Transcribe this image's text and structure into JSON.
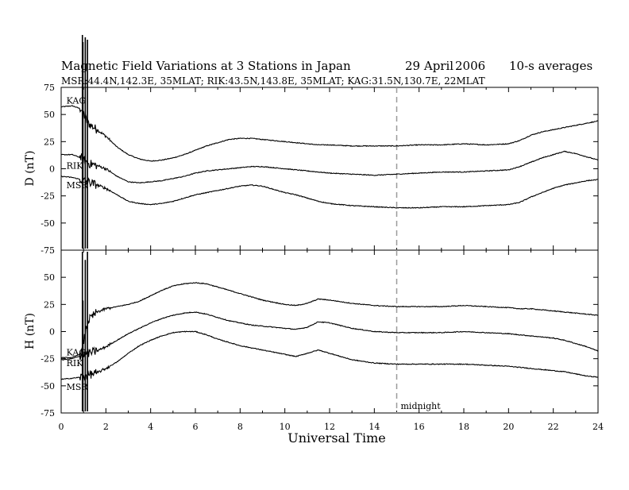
{
  "chart_data": {
    "type": "line",
    "title_left": "Magnetic Field Variations at 3 Stations in Japan",
    "title_date": "29 April",
    "title_year": "2006",
    "title_avg": "10-s averages",
    "subtitle": "MSR:44.4N,142.3E, 35MLAT;  RIK:43.5N,143.8E, 35MLAT;  KAG:31.5N,130.7E, 22MLAT",
    "xlabel": "Universal Time",
    "xlim": [
      0,
      24
    ],
    "x_ticks": [
      "0",
      "2",
      "4",
      "6",
      "8",
      "10",
      "12",
      "14",
      "16",
      "18",
      "20",
      "22",
      "24"
    ],
    "grid": false,
    "midnight_marker": {
      "x": 15,
      "label": "midnight",
      "style": "dashed",
      "color": "#9a9a9a"
    },
    "panels": [
      {
        "ylabel": "D (nT)",
        "ylim": [
          -75,
          75
        ],
        "y_ticks": [
          "75",
          "50",
          "25",
          "0",
          "-25",
          "-50",
          "-75"
        ],
        "station_labels": [
          {
            "text": "KAG",
            "x": 0.2,
            "y": 63
          },
          {
            "text": "RIK",
            "x": 0.2,
            "y": 3
          },
          {
            "text": "MSR",
            "x": 0.2,
            "y": -15
          }
        ],
        "series": [
          {
            "name": "KAG",
            "x": [
              0,
              0.5,
              0.9,
              1.2,
              1.6,
              2.0,
              2.5,
              3.0,
              3.5,
              4.0,
              4.5,
              5.0,
              5.5,
              6.0,
              6.5,
              7.0,
              7.5,
              8.0,
              8.5,
              9.0,
              9.5,
              10.0,
              10.5,
              11.0,
              11.5,
              12.0,
              13.0,
              14.0,
              15.0,
              16.0,
              17.0,
              18.0,
              19.0,
              20.0,
              20.5,
              21.0,
              21.5,
              22.0,
              22.5,
              23.0,
              23.5,
              24.0
            ],
            "y": [
              57,
              58,
              55,
              42,
              36,
              30,
              20,
              13,
              9,
              7,
              8,
              10,
              13,
              17,
              21,
              24,
              27,
              28,
              28,
              27,
              26,
              25,
              24,
              23,
              22,
              22,
              21,
              21,
              21,
              22,
              22,
              23,
              22,
              23,
              26,
              31,
              34,
              36,
              38,
              40,
              42,
              44
            ]
          },
          {
            "name": "RIK",
            "x": [
              0,
              0.5,
              0.9,
              1.2,
              1.6,
              2.0,
              2.5,
              3.0,
              3.5,
              4.0,
              4.5,
              5.0,
              5.5,
              6.0,
              6.5,
              7.0,
              7.5,
              8.0,
              8.5,
              9.0,
              9.5,
              10.0,
              10.5,
              11.0,
              11.5,
              12.0,
              13.0,
              14.0,
              15.0,
              16.0,
              17.0,
              18.0,
              19.0,
              20.0,
              20.5,
              21.0,
              21.5,
              22.0,
              22.5,
              23.0,
              23.5,
              24.0
            ],
            "y": [
              13,
              13,
              10,
              5,
              3,
              0,
              -7,
              -12,
              -13,
              -12,
              -11,
              -9,
              -7,
              -4,
              -2,
              -1,
              0,
              1,
              2,
              2,
              1,
              0,
              -1,
              -2,
              -3,
              -4,
              -5,
              -6,
              -5,
              -4,
              -3,
              -3,
              -2,
              -1,
              2,
              6,
              10,
              13,
              16,
              14,
              11,
              8
            ]
          },
          {
            "name": "MSR",
            "x": [
              0,
              0.5,
              0.9,
              1.2,
              1.6,
              2.0,
              2.5,
              3.0,
              3.5,
              4.0,
              4.5,
              5.0,
              5.5,
              6.0,
              6.5,
              7.0,
              7.5,
              8.0,
              8.5,
              9.0,
              9.5,
              10.0,
              10.5,
              11.0,
              11.5,
              12.0,
              13.0,
              14.0,
              15.0,
              16.0,
              17.0,
              18.0,
              19.0,
              20.0,
              20.5,
              21.0,
              21.5,
              22.0,
              22.5,
              23.0,
              23.5,
              24.0
            ],
            "y": [
              -7,
              -8,
              -10,
              -12,
              -15,
              -18,
              -24,
              -30,
              -32,
              -33,
              -32,
              -30,
              -27,
              -24,
              -22,
              -20,
              -18,
              -16,
              -15,
              -16,
              -19,
              -22,
              -24,
              -27,
              -30,
              -32,
              -34,
              -35,
              -36,
              -36,
              -35,
              -35,
              -34,
              -33,
              -31,
              -26,
              -22,
              -18,
              -15,
              -13,
              -11,
              -10
            ]
          }
        ]
      },
      {
        "ylabel": "H (nT)",
        "ylim": [
          -75,
          75
        ],
        "y_ticks": [
          "75",
          "50",
          "25",
          "0",
          "-25",
          "-50",
          "-75"
        ],
        "station_labels": [
          {
            "text": "KAG",
            "x": 0.2,
            "y": -19
          },
          {
            "text": "RIK",
            "x": 0.2,
            "y": -29
          },
          {
            "text": "MSR",
            "x": 0.2,
            "y": -51
          }
        ],
        "series": [
          {
            "name": "KAG",
            "x": [
              0,
              0.5,
              0.9,
              1.2,
              1.6,
              2.0,
              2.5,
              3.0,
              3.5,
              4.0,
              4.5,
              5.0,
              5.5,
              6.0,
              6.5,
              7.0,
              7.5,
              8.0,
              8.5,
              9.0,
              9.5,
              10.0,
              10.5,
              11.0,
              11.5,
              12.0,
              13.0,
              14.0,
              15.0,
              16.0,
              17.0,
              18.0,
              19.0,
              20.0,
              20.5,
              21.0,
              21.5,
              22.0,
              22.5,
              23.0,
              23.5,
              24.0
            ],
            "y": [
              -24,
              -24,
              -20,
              10,
              18,
              21,
              23,
              25,
              28,
              33,
              38,
              42,
              44,
              45,
              44,
              41,
              38,
              35,
              32,
              29,
              27,
              25,
              24,
              26,
              30,
              29,
              26,
              24,
              23,
              23,
              23,
              24,
              23,
              22,
              21,
              21,
              20,
              19,
              18,
              17,
              16,
              15
            ]
          },
          {
            "name": "RIK",
            "x": [
              0,
              0.5,
              0.9,
              1.2,
              1.6,
              2.0,
              2.5,
              3.0,
              3.5,
              4.0,
              4.5,
              5.0,
              5.5,
              6.0,
              6.5,
              7.0,
              7.5,
              8.0,
              8.5,
              9.0,
              9.5,
              10.0,
              10.5,
              11.0,
              11.5,
              12.0,
              13.0,
              14.0,
              15.0,
              16.0,
              17.0,
              18.0,
              19.0,
              20.0,
              20.5,
              21.0,
              21.5,
              22.0,
              22.5,
              23.0,
              23.5,
              24.0
            ],
            "y": [
              -26,
              -25,
              -22,
              -20,
              -18,
              -14,
              -8,
              -2,
              3,
              8,
              12,
              15,
              17,
              18,
              16,
              13,
              10,
              8,
              6,
              5,
              4,
              3,
              2,
              4,
              9,
              8,
              3,
              0,
              -1,
              -1,
              -1,
              0,
              -1,
              -2,
              -3,
              -4,
              -5,
              -6,
              -8,
              -11,
              -14,
              -18
            ]
          },
          {
            "name": "MSR",
            "x": [
              0,
              0.5,
              0.9,
              1.2,
              1.6,
              2.0,
              2.5,
              3.0,
              3.5,
              4.0,
              4.5,
              5.0,
              5.5,
              6.0,
              6.5,
              7.0,
              7.5,
              8.0,
              8.5,
              9.0,
              9.5,
              10.0,
              10.5,
              11.0,
              11.5,
              12.0,
              13.0,
              14.0,
              15.0,
              16.0,
              17.0,
              18.0,
              19.0,
              20.0,
              20.5,
              21.0,
              21.5,
              22.0,
              22.5,
              23.0,
              23.5,
              24.0
            ],
            "y": [
              -44,
              -43,
              -42,
              -40,
              -38,
              -34,
              -28,
              -20,
              -13,
              -8,
              -4,
              -1,
              0,
              0,
              -3,
              -7,
              -10,
              -13,
              -15,
              -17,
              -19,
              -21,
              -23,
              -20,
              -17,
              -20,
              -26,
              -29,
              -30,
              -30,
              -30,
              -30,
              -31,
              -32,
              -33,
              -34,
              -35,
              -36,
              -37,
              -39,
              -41,
              -42
            ]
          }
        ]
      }
    ]
  }
}
